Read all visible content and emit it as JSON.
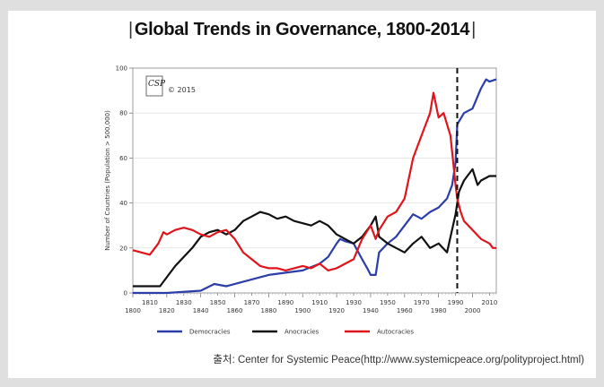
{
  "title": "Global Trends in Governance, 1800-2014",
  "title_marker": "|",
  "source_text": "출처: Center for Systemic Peace(http://www.systemicpeace.org/polityproject.html)",
  "logo": {
    "text": "CSP",
    "copyright": "© 2015"
  },
  "colors": {
    "democracies": "#2b3ea8",
    "anocracies": "#111111",
    "autocracies": "#e0151b",
    "dashed_line": "#111111"
  },
  "chart_data": {
    "type": "line",
    "title": "Global Trends in Governance, 1800-2014",
    "ylabel": "Number of Countries (Population > 500,000)",
    "xlabel": "",
    "xlim": [
      1800,
      2014
    ],
    "ylim": [
      0,
      100
    ],
    "x_ticks": [
      1800,
      1810,
      1820,
      1830,
      1840,
      1850,
      1860,
      1870,
      1880,
      1890,
      1900,
      1910,
      1920,
      1930,
      1940,
      1950,
      1960,
      1970,
      1980,
      1990,
      2000,
      2010
    ],
    "y_ticks": [
      0,
      20,
      40,
      60,
      80,
      100
    ],
    "reference_line": {
      "x": 1991,
      "style": "dashed"
    },
    "legend": [
      "Democracies",
      "Anocracies",
      "Autocracies"
    ],
    "legend_position": "bottom",
    "series": [
      {
        "name": "Democracies",
        "color_key": "democracies",
        "points": [
          [
            1800,
            0
          ],
          [
            1820,
            0
          ],
          [
            1840,
            1
          ],
          [
            1848,
            4
          ],
          [
            1855,
            3
          ],
          [
            1870,
            6
          ],
          [
            1880,
            8
          ],
          [
            1890,
            9
          ],
          [
            1900,
            10
          ],
          [
            1910,
            13
          ],
          [
            1915,
            16
          ],
          [
            1920,
            22
          ],
          [
            1922,
            24
          ],
          [
            1925,
            23
          ],
          [
            1930,
            22
          ],
          [
            1935,
            15
          ],
          [
            1938,
            11
          ],
          [
            1940,
            8
          ],
          [
            1943,
            8
          ],
          [
            1945,
            18
          ],
          [
            1950,
            22
          ],
          [
            1955,
            25
          ],
          [
            1960,
            30
          ],
          [
            1965,
            35
          ],
          [
            1970,
            33
          ],
          [
            1975,
            36
          ],
          [
            1980,
            38
          ],
          [
            1985,
            42
          ],
          [
            1988,
            48
          ],
          [
            1990,
            58
          ],
          [
            1991,
            75
          ],
          [
            1995,
            80
          ],
          [
            2000,
            82
          ],
          [
            2005,
            91
          ],
          [
            2008,
            95
          ],
          [
            2010,
            94
          ],
          [
            2014,
            95
          ]
        ]
      },
      {
        "name": "Anocracies",
        "color_key": "anocracies",
        "points": [
          [
            1800,
            3
          ],
          [
            1810,
            3
          ],
          [
            1816,
            3
          ],
          [
            1820,
            7
          ],
          [
            1825,
            12
          ],
          [
            1830,
            16
          ],
          [
            1835,
            20
          ],
          [
            1840,
            25
          ],
          [
            1845,
            27
          ],
          [
            1850,
            28
          ],
          [
            1855,
            26
          ],
          [
            1860,
            28
          ],
          [
            1865,
            32
          ],
          [
            1870,
            34
          ],
          [
            1875,
            36
          ],
          [
            1880,
            35
          ],
          [
            1885,
            33
          ],
          [
            1890,
            34
          ],
          [
            1895,
            32
          ],
          [
            1900,
            31
          ],
          [
            1905,
            30
          ],
          [
            1910,
            32
          ],
          [
            1915,
            30
          ],
          [
            1920,
            26
          ],
          [
            1925,
            24
          ],
          [
            1930,
            22
          ],
          [
            1935,
            25
          ],
          [
            1940,
            30
          ],
          [
            1943,
            34
          ],
          [
            1945,
            25
          ],
          [
            1950,
            22
          ],
          [
            1955,
            20
          ],
          [
            1960,
            18
          ],
          [
            1965,
            22
          ],
          [
            1970,
            25
          ],
          [
            1975,
            20
          ],
          [
            1980,
            22
          ],
          [
            1985,
            18
          ],
          [
            1990,
            35
          ],
          [
            1992,
            45
          ],
          [
            1995,
            50
          ],
          [
            2000,
            55
          ],
          [
            2003,
            48
          ],
          [
            2005,
            50
          ],
          [
            2010,
            52
          ],
          [
            2014,
            52
          ]
        ]
      },
      {
        "name": "Autocracies",
        "color_key": "autocracies",
        "points": [
          [
            1800,
            19
          ],
          [
            1805,
            18
          ],
          [
            1810,
            17
          ],
          [
            1815,
            22
          ],
          [
            1818,
            27
          ],
          [
            1820,
            26
          ],
          [
            1825,
            28
          ],
          [
            1830,
            29
          ],
          [
            1835,
            28
          ],
          [
            1840,
            26
          ],
          [
            1845,
            25
          ],
          [
            1850,
            27
          ],
          [
            1855,
            28
          ],
          [
            1860,
            24
          ],
          [
            1865,
            18
          ],
          [
            1870,
            15
          ],
          [
            1875,
            12
          ],
          [
            1880,
            11
          ],
          [
            1885,
            11
          ],
          [
            1890,
            10
          ],
          [
            1895,
            11
          ],
          [
            1900,
            12
          ],
          [
            1905,
            11
          ],
          [
            1910,
            13
          ],
          [
            1915,
            10
          ],
          [
            1920,
            11
          ],
          [
            1925,
            13
          ],
          [
            1930,
            15
          ],
          [
            1935,
            24
          ],
          [
            1940,
            30
          ],
          [
            1943,
            24
          ],
          [
            1945,
            28
          ],
          [
            1950,
            34
          ],
          [
            1955,
            36
          ],
          [
            1960,
            42
          ],
          [
            1965,
            60
          ],
          [
            1970,
            70
          ],
          [
            1975,
            80
          ],
          [
            1977,
            89
          ],
          [
            1980,
            78
          ],
          [
            1983,
            80
          ],
          [
            1987,
            70
          ],
          [
            1990,
            48
          ],
          [
            1991,
            42
          ],
          [
            1993,
            36
          ],
          [
            1995,
            32
          ],
          [
            2000,
            28
          ],
          [
            2005,
            24
          ],
          [
            2010,
            22
          ],
          [
            2012,
            20
          ],
          [
            2014,
            20
          ]
        ]
      }
    ]
  }
}
